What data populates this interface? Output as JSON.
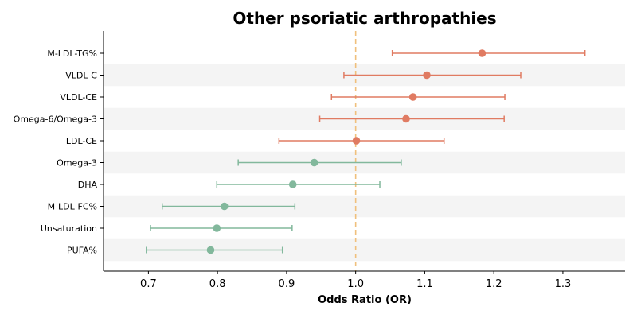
{
  "chart_data": {
    "type": "forest",
    "title": "Other psoriatic arthropathies",
    "xlabel": "Odds Ratio (OR)",
    "xlim": [
      0.635,
      1.39
    ],
    "xticks": [
      0.7,
      0.8,
      0.9,
      1.0,
      1.1,
      1.2,
      1.3
    ],
    "xtick_labels": [
      "0.7",
      "0.8",
      "0.9",
      "1.0",
      "1.1",
      "1.2",
      "1.3"
    ],
    "reference_line": 1.0,
    "grid": false,
    "legend": "none",
    "colors": {
      "increased": "#e07b62",
      "decreased": "#82b89c",
      "reference": "#f0c07c",
      "band": "#f4f4f4"
    },
    "categories": [
      "M-LDL-TG%",
      "VLDL-C",
      "VLDL-CE",
      "Omega-6/Omega-3",
      "LDL-CE",
      "Omega-3",
      "DHA",
      "M-LDL-FC%",
      "Unsaturation",
      "PUFA%"
    ],
    "or": [
      1.183,
      1.103,
      1.083,
      1.073,
      1.001,
      0.94,
      0.909,
      0.81,
      0.799,
      0.79
    ],
    "ci_low": [
      1.053,
      0.983,
      0.965,
      0.948,
      0.889,
      0.83,
      0.799,
      0.72,
      0.703,
      0.697
    ],
    "ci_high": [
      1.332,
      1.239,
      1.216,
      1.215,
      1.128,
      1.066,
      1.035,
      0.912,
      0.908,
      0.894
    ]
  }
}
